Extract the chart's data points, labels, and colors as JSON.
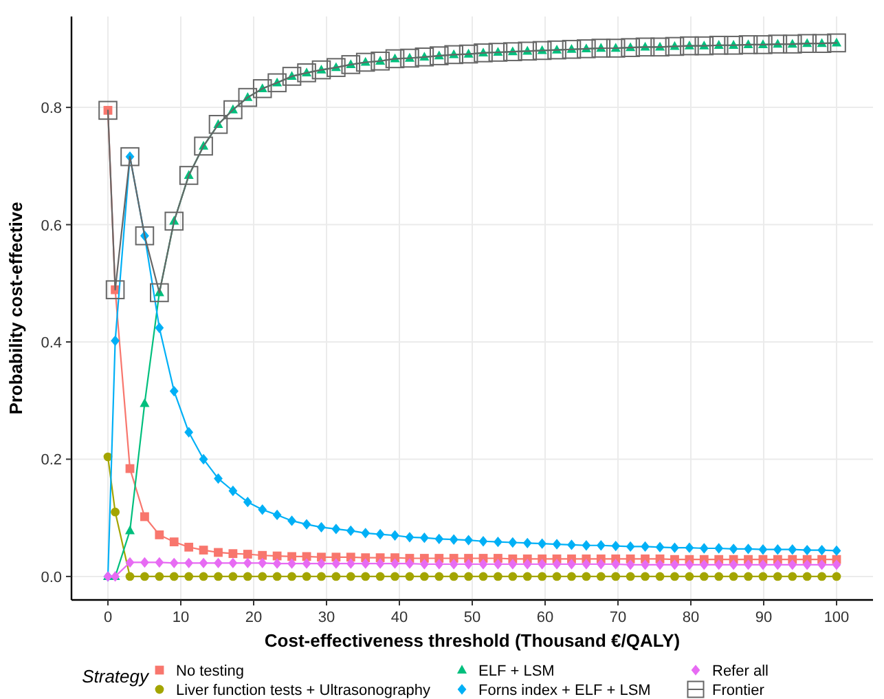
{
  "chart_data": {
    "type": "line",
    "xlabel": "Cost-effectiveness threshold (Thousand €/QALY)",
    "ylabel": "Probability cost-effective",
    "legend_title": "Strategy",
    "legend": "bottom",
    "grid": true,
    "x": [
      0,
      1,
      3.02,
      5.04,
      7.06,
      9.08,
      11.1,
      13.12,
      15.14,
      17.16,
      19.18,
      21.2,
      23.22,
      25.24,
      27.27,
      29.29,
      31.31,
      33.33,
      35.35,
      37.37,
      39.39,
      41.41,
      43.43,
      45.45,
      47.47,
      49.49,
      51.51,
      53.53,
      55.55,
      57.57,
      59.59,
      61.61,
      63.63,
      65.65,
      67.67,
      69.69,
      71.71,
      73.73,
      75.76,
      77.78,
      79.8,
      81.82,
      83.84,
      85.86,
      87.88,
      89.9,
      91.92,
      93.94,
      95.96,
      97.98,
      100
    ],
    "xlim": [
      -5,
      105
    ],
    "xticks": [
      0,
      10,
      20,
      30,
      40,
      50,
      60,
      70,
      80,
      90,
      100
    ],
    "ylim": [
      -0.04,
      0.955
    ],
    "yticks": [
      {
        "value": 0,
        "label": "0.0"
      },
      0.2,
      0.4,
      0.6,
      0.8
    ],
    "series": [
      {
        "name": "No testing",
        "color": "#f8766d",
        "marker": "square",
        "values": [
          0.795,
          0.489,
          0.184,
          0.102,
          0.071,
          0.059,
          0.05,
          0.045,
          0.041,
          0.039,
          0.038,
          0.036,
          0.035,
          0.034,
          0.034,
          0.033,
          0.033,
          0.033,
          0.032,
          0.032,
          0.032,
          0.031,
          0.031,
          0.031,
          0.031,
          0.031,
          0.031,
          0.031,
          0.03,
          0.03,
          0.03,
          0.03,
          0.03,
          0.03,
          0.03,
          0.03,
          0.03,
          0.03,
          0.03,
          0.029,
          0.029,
          0.029,
          0.029,
          0.029,
          0.029,
          0.029,
          0.029,
          0.029,
          0.029,
          0.029,
          0.029
        ]
      },
      {
        "name": "Liver function tests + Ultrasonography",
        "color": "#a3a500",
        "marker": "circle",
        "values": [
          0.204,
          0.11,
          0,
          0,
          0,
          0,
          0,
          0,
          0,
          0,
          0,
          0,
          0,
          0,
          0,
          0,
          0,
          0,
          0,
          0,
          0,
          0,
          0,
          0,
          0,
          0,
          0,
          0,
          0,
          0,
          0,
          0,
          0,
          0,
          0,
          0,
          0,
          0,
          0,
          0,
          0,
          0,
          0,
          0,
          0,
          0,
          0,
          0,
          0,
          0,
          0
        ]
      },
      {
        "name": "ELF + LSM",
        "color": "#00bf7d",
        "marker": "triangle",
        "values": [
          0,
          0,
          0.078,
          0.295,
          0.484,
          0.606,
          0.684,
          0.734,
          0.771,
          0.796,
          0.817,
          0.832,
          0.842,
          0.853,
          0.859,
          0.864,
          0.868,
          0.873,
          0.877,
          0.879,
          0.883,
          0.884,
          0.886,
          0.888,
          0.89,
          0.891,
          0.893,
          0.894,
          0.895,
          0.896,
          0.897,
          0.898,
          0.899,
          0.9,
          0.901,
          0.901,
          0.902,
          0.903,
          0.903,
          0.904,
          0.905,
          0.905,
          0.906,
          0.906,
          0.907,
          0.907,
          0.908,
          0.908,
          0.909,
          0.909,
          0.91
        ]
      },
      {
        "name": "Forns index + ELF + LSM",
        "color": "#00b0f6",
        "marker": "diamond",
        "values": [
          0,
          0.402,
          0.716,
          0.581,
          0.424,
          0.316,
          0.246,
          0.2,
          0.167,
          0.146,
          0.127,
          0.114,
          0.105,
          0.095,
          0.089,
          0.084,
          0.081,
          0.078,
          0.074,
          0.072,
          0.07,
          0.067,
          0.066,
          0.064,
          0.063,
          0.062,
          0.06,
          0.059,
          0.058,
          0.057,
          0.056,
          0.055,
          0.054,
          0.053,
          0.053,
          0.052,
          0.051,
          0.051,
          0.05,
          0.049,
          0.049,
          0.048,
          0.048,
          0.047,
          0.047,
          0.046,
          0.046,
          0.046,
          0.045,
          0.045,
          0.044
        ]
      },
      {
        "name": "Refer all",
        "color": "#e76bf3",
        "marker": "diamond",
        "values": [
          0,
          0,
          0.024,
          0.024,
          0.024,
          0.023,
          0.023,
          0.023,
          0.023,
          0.023,
          0.023,
          0.023,
          0.022,
          0.022,
          0.022,
          0.022,
          0.022,
          0.022,
          0.022,
          0.022,
          0.022,
          0.022,
          0.021,
          0.021,
          0.021,
          0.021,
          0.021,
          0.021,
          0.021,
          0.021,
          0.021,
          0.021,
          0.021,
          0.021,
          0.021,
          0.021,
          0.02,
          0.02,
          0.02,
          0.02,
          0.02,
          0.02,
          0.02,
          0.02,
          0.02,
          0.02,
          0.02,
          0.02,
          0.02,
          0.02,
          0.02
        ]
      },
      {
        "name": "Frontier",
        "color": "#666666",
        "marker": "square-open",
        "values": [
          0.795,
          0.489,
          0.716,
          0.581,
          0.484,
          0.606,
          0.684,
          0.734,
          0.771,
          0.796,
          0.817,
          0.832,
          0.842,
          0.853,
          0.859,
          0.864,
          0.868,
          0.873,
          0.877,
          0.879,
          0.883,
          0.884,
          0.886,
          0.888,
          0.89,
          0.891,
          0.893,
          0.894,
          0.895,
          0.896,
          0.897,
          0.898,
          0.899,
          0.9,
          0.901,
          0.901,
          0.902,
          0.903,
          0.903,
          0.904,
          0.905,
          0.905,
          0.906,
          0.906,
          0.907,
          0.907,
          0.908,
          0.908,
          0.909,
          0.909,
          0.91
        ]
      }
    ]
  }
}
